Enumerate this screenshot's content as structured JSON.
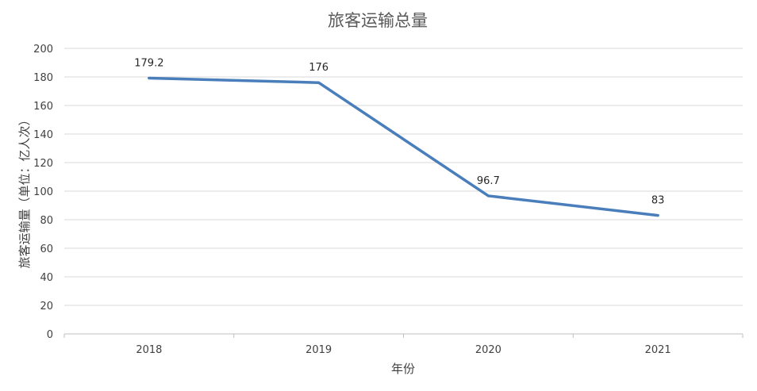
{
  "chart_data": {
    "type": "line",
    "title": "旅客运输总量",
    "xlabel": "年份",
    "ylabel": "旅客运输量（单位：亿人次）",
    "categories": [
      "2018",
      "2019",
      "2020",
      "2021"
    ],
    "series": [
      {
        "values": [
          179.2,
          176,
          96.7,
          83
        ],
        "color": "#4a7ebb",
        "data_labels": [
          "179.2",
          "176",
          "96.7",
          "83"
        ]
      }
    ],
    "ylim": [
      0,
      200
    ],
    "yticks": [
      0,
      20,
      40,
      60,
      80,
      100,
      120,
      140,
      160,
      180,
      200
    ],
    "grid": true,
    "legend": "none",
    "colors": {
      "line": "#4a7ebb",
      "grid": "#d9d9d9",
      "axis": "#bfbfbf"
    }
  }
}
